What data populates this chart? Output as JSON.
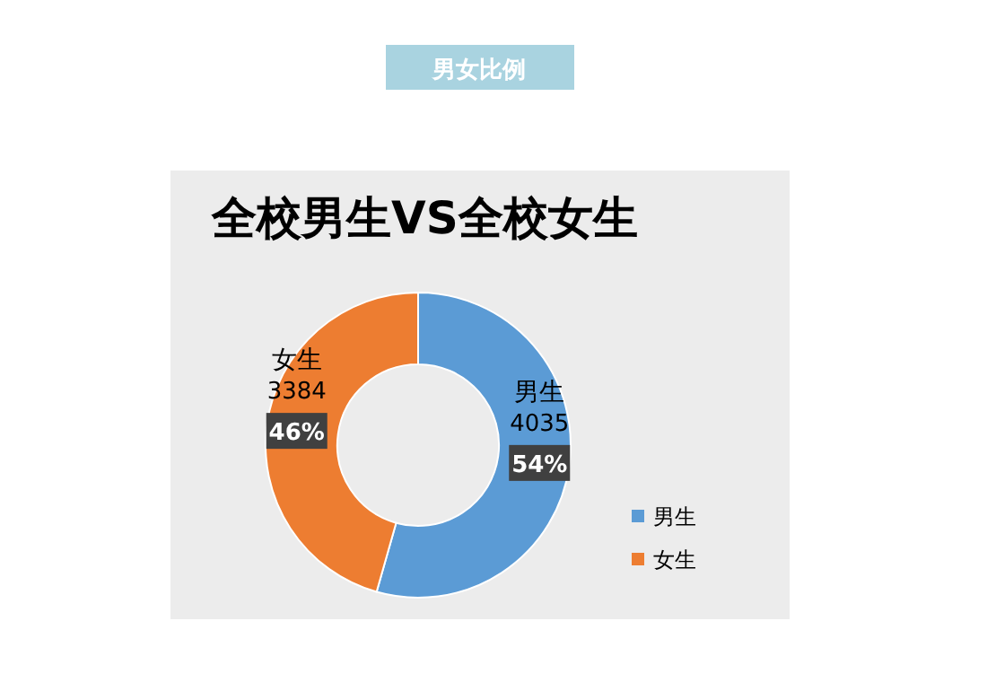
{
  "chart_data": {
    "type": "donut",
    "subtitle": "男女比例",
    "title": "全校男生VS全校女生",
    "categories": [
      "男生",
      "女生"
    ],
    "values": [
      4035,
      3384
    ],
    "colors": [
      "#5b9bd5",
      "#ed7d31"
    ],
    "data_labels": true,
    "annotations": [
      "54%",
      "46%"
    ],
    "legend": "bottom right"
  }
}
